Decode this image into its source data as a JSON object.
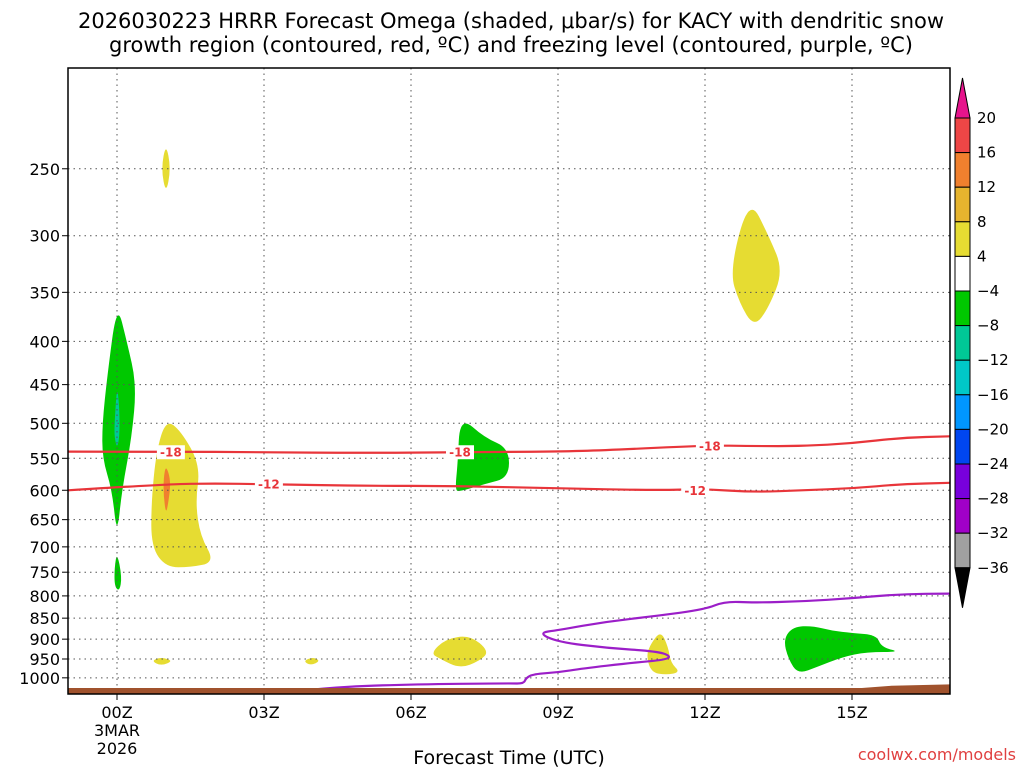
{
  "chart_data": {
    "type": "contour",
    "title_line1": "2026030223 HRRR Forecast Omega (shaded, μbar/s) for KACY with dendritic snow",
    "title_line2": "growth region (contoured, red, ºC) and freezing level (contoured, purple, ºC)",
    "xlabel": "Forecast Time (UTC)",
    "credit": "coolwx.com/models",
    "x_hours_range": [
      -1,
      17
    ],
    "x_ticks": [
      {
        "hour": 0,
        "label": "00Z",
        "sub1": "3MAR",
        "sub2": "2026"
      },
      {
        "hour": 3,
        "label": "03Z"
      },
      {
        "hour": 6,
        "label": "06Z"
      },
      {
        "hour": 9,
        "label": "09Z"
      },
      {
        "hour": 12,
        "label": "12Z"
      },
      {
        "hour": 15,
        "label": "15Z"
      }
    ],
    "y_scale": "log-pressure",
    "y_range_hpa": [
      1045,
      190
    ],
    "y_ticks": [
      {
        "p": 250,
        "label": "250"
      },
      {
        "p": 300,
        "label": "300"
      },
      {
        "p": 350,
        "label": "350"
      },
      {
        "p": 400,
        "label": "400"
      },
      {
        "p": 450,
        "label": "450"
      },
      {
        "p": 500,
        "label": "500"
      },
      {
        "p": 550,
        "label": "550"
      },
      {
        "p": 600,
        "label": "600"
      },
      {
        "p": 650,
        "label": "650"
      },
      {
        "p": 700,
        "label": "700"
      },
      {
        "p": 750,
        "label": "750"
      },
      {
        "p": 800,
        "label": "800"
      },
      {
        "p": 850,
        "label": "850"
      },
      {
        "p": 900,
        "label": "900"
      },
      {
        "p": 950,
        "label": "950"
      },
      {
        "p": 1000,
        "label": "1000"
      }
    ],
    "grid": true,
    "colorbar": {
      "position": "right",
      "levels": [
        {
          "value": "20",
          "color": "#ffffff"
        },
        {
          "value": "16",
          "color": "#ee4646"
        },
        {
          "value": "12",
          "color": "#f0802e"
        },
        {
          "value": "8",
          "color": "#e6b42e"
        },
        {
          "value": "4",
          "color": "#e6dc32"
        },
        {
          "value": "−4",
          "color": "#ffffff"
        },
        {
          "value": "−8",
          "color": "#00c800"
        },
        {
          "value": "−12",
          "color": "#00c896"
        },
        {
          "value": "−16",
          "color": "#00c8c8"
        },
        {
          "value": "−20",
          "color": "#0096ff"
        },
        {
          "value": "−24",
          "color": "#0046f0"
        },
        {
          "value": "−28",
          "color": "#7800dc"
        },
        {
          "value": "−32",
          "color": "#a000c8"
        },
        {
          "value": "−36",
          "color": "#a0a0a0"
        }
      ],
      "top_cap_color": "#e6148c",
      "bottom_cap_color": "#000000"
    },
    "shaded_regions": [
      {
        "color": "#00c800",
        "points": [
          [
            -0.3,
            500
          ],
          [
            -0.2,
            440
          ],
          [
            0,
            360
          ],
          [
            0.2,
            400
          ],
          [
            0.4,
            450
          ],
          [
            0.3,
            520
          ],
          [
            0.1,
            600
          ],
          [
            0,
            680
          ],
          [
            -0.1,
            600
          ],
          [
            -0.3,
            550
          ]
        ]
      },
      {
        "color": "#00c896",
        "points": [
          [
            -0.05,
            500
          ],
          [
            0,
            450
          ],
          [
            0.05,
            480
          ],
          [
            0.05,
            520
          ],
          [
            0,
            535
          ],
          [
            -0.05,
            520
          ]
        ]
      },
      {
        "color": "#00c800",
        "points": [
          [
            -0.05,
            740
          ],
          [
            0,
            710
          ],
          [
            0.1,
            760
          ],
          [
            0.05,
            790
          ],
          [
            -0.05,
            780
          ]
        ]
      },
      {
        "color": "#e6dc32",
        "points": [
          [
            0.9,
            250
          ],
          [
            1,
            233
          ],
          [
            1.1,
            250
          ],
          [
            1,
            268
          ]
        ]
      },
      {
        "color": "#e6dc32",
        "points": [
          [
            0.7,
            620
          ],
          [
            0.8,
            540
          ],
          [
            1,
            495
          ],
          [
            1.3,
            510
          ],
          [
            1.7,
            560
          ],
          [
            1.6,
            620
          ],
          [
            1.7,
            680
          ],
          [
            2,
            730
          ],
          [
            1.5,
            740
          ],
          [
            1,
            740
          ],
          [
            0.7,
            700
          ]
        ]
      },
      {
        "color": "#f0802e",
        "points": [
          [
            0.95,
            580
          ],
          [
            1,
            560
          ],
          [
            1.1,
            585
          ],
          [
            1.05,
            620
          ],
          [
            1,
            640
          ],
          [
            0.95,
            610
          ]
        ]
      },
      {
        "color": "#e6dc32",
        "points": [
          [
            0.7,
            955
          ],
          [
            0.9,
            945
          ],
          [
            1.15,
            955
          ],
          [
            0.9,
            968
          ]
        ]
      },
      {
        "color": "#e6dc32",
        "points": [
          [
            3.8,
            955
          ],
          [
            4,
            945
          ],
          [
            4.15,
            955
          ],
          [
            3.95,
            967
          ]
        ]
      },
      {
        "color": "#00c800",
        "points": [
          [
            6.9,
            600
          ],
          [
            6.95,
            560
          ],
          [
            7,
            490
          ],
          [
            7.5,
            520
          ],
          [
            8,
            535
          ],
          [
            8,
            580
          ],
          [
            7.5,
            590
          ],
          [
            7,
            602
          ]
        ]
      },
      {
        "color": "#e6dc32",
        "points": [
          [
            6.4,
            935
          ],
          [
            6.7,
            900
          ],
          [
            7.2,
            890
          ],
          [
            7.6,
            930
          ],
          [
            7.4,
            955
          ],
          [
            7,
            975
          ],
          [
            6.6,
            950
          ]
        ]
      },
      {
        "color": "#e6dc32",
        "points": [
          [
            10.8,
            940
          ],
          [
            10.9,
            910
          ],
          [
            11.1,
            880
          ],
          [
            11.25,
            920
          ],
          [
            11.3,
            960
          ],
          [
            11.5,
            985
          ],
          [
            11.2,
            992
          ],
          [
            10.9,
            985
          ]
        ]
      },
      {
        "color": "#e6dc32",
        "points": [
          [
            12.5,
            330
          ],
          [
            12.9,
            270
          ],
          [
            13.3,
            300
          ],
          [
            13.6,
            330
          ],
          [
            13.3,
            365
          ],
          [
            13,
            385
          ],
          [
            12.7,
            360
          ]
        ]
      },
      {
        "color": "#00c800",
        "points": [
          [
            13.6,
            900
          ],
          [
            13.8,
            870
          ],
          [
            14.2,
            868
          ],
          [
            14.6,
            880
          ],
          [
            15,
            885
          ],
          [
            15.5,
            890
          ],
          [
            15.6,
            920
          ],
          [
            16,
            932
          ],
          [
            15.3,
            932
          ],
          [
            14.8,
            945
          ],
          [
            14.3,
            970
          ],
          [
            13.9,
            990
          ],
          [
            13.7,
            950
          ]
        ]
      }
    ],
    "contours": [
      {
        "name": "-18",
        "color": "#e8353a",
        "label": "-18",
        "label_positions": [
          [
            1.1,
            541
          ],
          [
            7,
            541
          ],
          [
            12.1,
            532
          ]
        ],
        "points": [
          [
            -1,
            540
          ],
          [
            1,
            540
          ],
          [
            3,
            541
          ],
          [
            5,
            542
          ],
          [
            7,
            541
          ],
          [
            9,
            540
          ],
          [
            10,
            538
          ],
          [
            12,
            531
          ],
          [
            13,
            532
          ],
          [
            14,
            532
          ],
          [
            15,
            528
          ],
          [
            16,
            520
          ],
          [
            17,
            518
          ]
        ]
      },
      {
        "name": "-12",
        "color": "#e8353a",
        "label": "-12",
        "label_positions": [
          [
            3.1,
            590
          ],
          [
            11.8,
            600
          ]
        ],
        "points": [
          [
            -1,
            600
          ],
          [
            1,
            590
          ],
          [
            2,
            589
          ],
          [
            3,
            590
          ],
          [
            5,
            593
          ],
          [
            7,
            593
          ],
          [
            9,
            597
          ],
          [
            11,
            600
          ],
          [
            12,
            598
          ],
          [
            13,
            603
          ],
          [
            14,
            600
          ],
          [
            15,
            597
          ],
          [
            16,
            590
          ],
          [
            17,
            588
          ]
        ]
      },
      {
        "name": "freezing-level",
        "color": "#9b1ec8",
        "label": "",
        "label_positions": [],
        "points": [
          [
            3.8,
            1035
          ],
          [
            4.5,
            1025
          ],
          [
            6,
            1018
          ],
          [
            8,
            1015
          ],
          [
            8.3,
            1016
          ],
          [
            8.35,
            1000
          ],
          [
            8.5,
            990
          ],
          [
            9,
            985
          ],
          [
            9.5,
            975
          ],
          [
            10.5,
            960
          ],
          [
            11.2,
            952
          ],
          [
            11.3,
            942
          ],
          [
            11,
            930
          ],
          [
            10,
            922
          ],
          [
            9,
            907
          ],
          [
            8.6,
            885
          ],
          [
            9,
            878
          ],
          [
            10,
            858
          ],
          [
            11,
            845
          ],
          [
            12,
            830
          ],
          [
            12.4,
            812
          ],
          [
            13,
            815
          ],
          [
            14,
            812
          ],
          [
            15,
            805
          ],
          [
            16,
            796
          ],
          [
            17,
            795
          ]
        ]
      }
    ],
    "surface": {
      "color": "#a0522d",
      "points": [
        [
          -1,
          1028
        ],
        [
          15.2,
          1028
        ],
        [
          15.8,
          1022
        ],
        [
          17,
          1018
        ]
      ]
    }
  }
}
